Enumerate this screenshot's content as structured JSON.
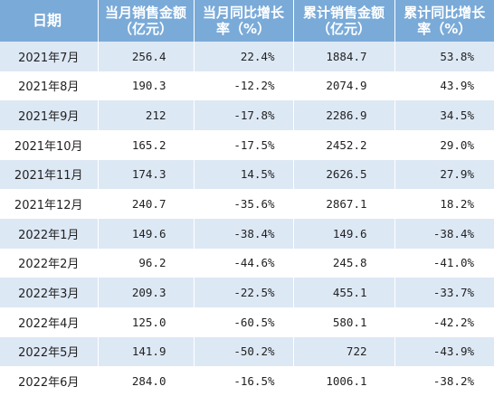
{
  "table": {
    "headers": {
      "date": "日期",
      "monthly_sales_line1": "当月销售金额",
      "monthly_sales_line2": "（亿元）",
      "monthly_yoy_line1": "当月同比增长",
      "monthly_yoy_line2": "率（%）",
      "cumulative_sales_line1": "累计销售金额",
      "cumulative_sales_line2": "（亿元）",
      "cumulative_yoy_line1": "累计同比增长",
      "cumulative_yoy_line2": "率（%）"
    },
    "rows": [
      {
        "date": "2021年7月",
        "monthly_sales": "256.4",
        "monthly_yoy": "22.4%",
        "cumulative_sales": "1884.7",
        "cumulative_yoy": "53.8%"
      },
      {
        "date": "2021年8月",
        "monthly_sales": "190.3",
        "monthly_yoy": "-12.2%",
        "cumulative_sales": "2074.9",
        "cumulative_yoy": "43.9%"
      },
      {
        "date": "2021年9月",
        "monthly_sales": "212",
        "monthly_yoy": "-17.8%",
        "cumulative_sales": "2286.9",
        "cumulative_yoy": "34.5%"
      },
      {
        "date": "2021年10月",
        "monthly_sales": "165.2",
        "monthly_yoy": "-17.5%",
        "cumulative_sales": "2452.2",
        "cumulative_yoy": "29.0%"
      },
      {
        "date": "2021年11月",
        "monthly_sales": "174.3",
        "monthly_yoy": "14.5%",
        "cumulative_sales": "2626.5",
        "cumulative_yoy": "27.9%"
      },
      {
        "date": "2021年12月",
        "monthly_sales": "240.7",
        "monthly_yoy": "-35.6%",
        "cumulative_sales": "2867.1",
        "cumulative_yoy": "18.2%"
      },
      {
        "date": "2022年1月",
        "monthly_sales": "149.6",
        "monthly_yoy": "-38.4%",
        "cumulative_sales": "149.6",
        "cumulative_yoy": "-38.4%"
      },
      {
        "date": "2022年2月",
        "monthly_sales": "96.2",
        "monthly_yoy": "-44.6%",
        "cumulative_sales": "245.8",
        "cumulative_yoy": "-41.0%"
      },
      {
        "date": "2022年3月",
        "monthly_sales": "209.3",
        "monthly_yoy": "-22.5%",
        "cumulative_sales": "455.1",
        "cumulative_yoy": "-33.7%"
      },
      {
        "date": "2022年4月",
        "monthly_sales": "125.0",
        "monthly_yoy": "-60.5%",
        "cumulative_sales": "580.1",
        "cumulative_yoy": "-42.2%"
      },
      {
        "date": "2022年5月",
        "monthly_sales": "141.9",
        "monthly_yoy": "-50.2%",
        "cumulative_sales": "722",
        "cumulative_yoy": "-43.9%"
      },
      {
        "date": "2022年6月",
        "monthly_sales": "284.0",
        "monthly_yoy": "-16.5%",
        "cumulative_sales": "1006.1",
        "cumulative_yoy": "-38.2%"
      }
    ]
  },
  "colors": {
    "header_bg": "#7aaad8",
    "header_text": "#ffffff",
    "stripe_bg": "#dde8f5",
    "body_text": "#222222"
  }
}
